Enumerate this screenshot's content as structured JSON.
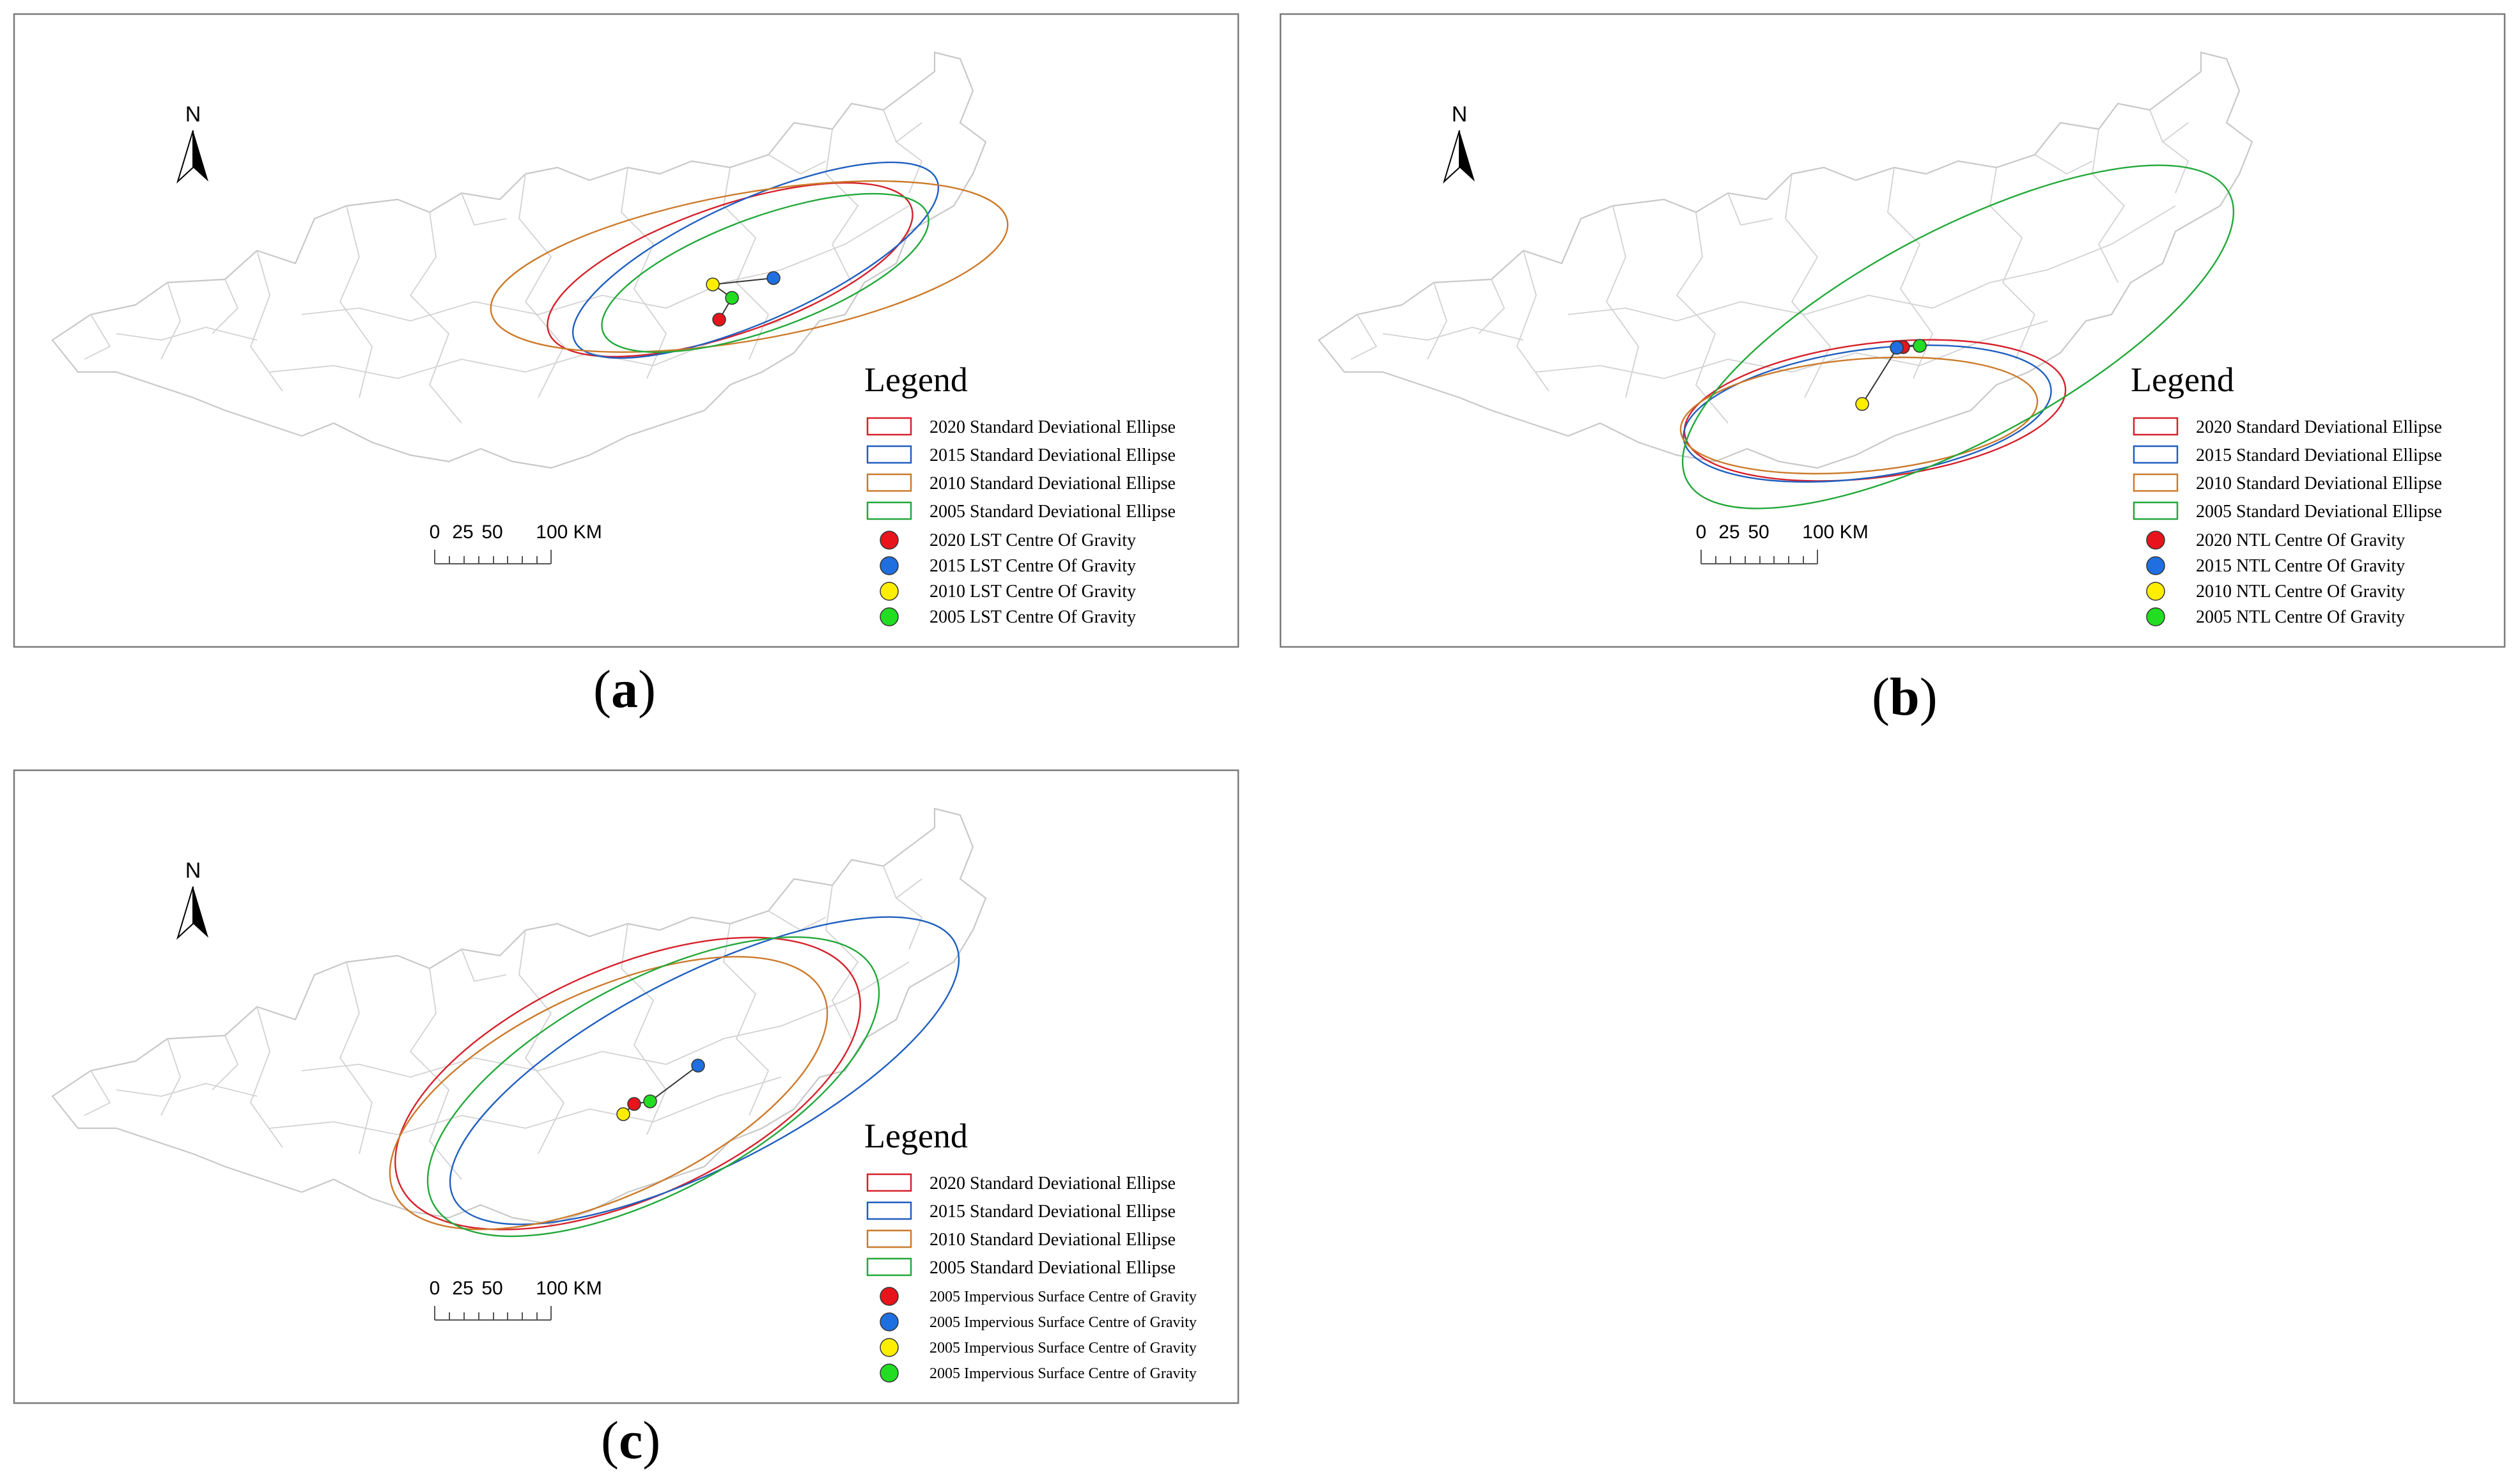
{
  "panels": [
    {
      "id": "a",
      "caption_letter": "a",
      "north_label": "N",
      "scale": {
        "ticks": [
          "0",
          "25",
          "50",
          "100 KM"
        ]
      },
      "legend": {
        "title": "Legend",
        "ellipses": [
          {
            "label": "2020 Standard Deviational Ellipse",
            "color": "#d6202a"
          },
          {
            "label": "2015 Standard Deviational Ellipse",
            "color": "#1f5fbf"
          },
          {
            "label": "2010 Standard Deviational Ellipse",
            "color": "#cc7a2a"
          },
          {
            "label": "2005 Standard Deviational Ellipse",
            "color": "#22a83a"
          }
        ],
        "centres": [
          {
            "label": "2020 LST Centre Of Gravity",
            "color": "#e8141c"
          },
          {
            "label": "2015 LST Centre Of Gravity",
            "color": "#1f6fe0"
          },
          {
            "label": "2010 LST Centre Of Gravity",
            "color": "#ffee00"
          },
          {
            "label": "2005 LST Centre Of Gravity",
            "color": "#22dd22"
          }
        ]
      }
    },
    {
      "id": "b",
      "caption_letter": "b",
      "north_label": "N",
      "scale": {
        "ticks": [
          "0",
          "25",
          "50",
          "100 KM"
        ]
      },
      "legend": {
        "title": "Legend",
        "ellipses": [
          {
            "label": "2020 Standard Deviational Ellipse",
            "color": "#d6202a"
          },
          {
            "label": "2015 Standard Deviational Ellipse",
            "color": "#1f5fbf"
          },
          {
            "label": "2010 Standard Deviational Ellipse",
            "color": "#cc7a2a"
          },
          {
            "label": "2005 Standard Deviational Ellipse",
            "color": "#22a83a"
          }
        ],
        "centres": [
          {
            "label": "2020 NTL Centre Of Gravity",
            "color": "#e8141c"
          },
          {
            "label": "2015 NTL Centre Of Gravity",
            "color": "#1f6fe0"
          },
          {
            "label": "2010 NTL Centre Of Gravity",
            "color": "#ffee00"
          },
          {
            "label": "2005 NTL Centre Of Gravity",
            "color": "#22dd22"
          }
        ]
      }
    },
    {
      "id": "c",
      "caption_letter": "c",
      "north_label": "N",
      "scale": {
        "ticks": [
          "0",
          "25",
          "50",
          "100 KM"
        ]
      },
      "legend": {
        "title": "Legend",
        "ellipses": [
          {
            "label": "2020 Standard Deviational Ellipse",
            "color": "#d6202a"
          },
          {
            "label": "2015 Standard Deviational Ellipse",
            "color": "#1f5fbf"
          },
          {
            "label": "2010 Standard Deviational Ellipse",
            "color": "#cc7a2a"
          },
          {
            "label": "2005 Standard Deviational Ellipse",
            "color": "#22a83a"
          }
        ],
        "centres": [
          {
            "label": "2005 Impervious Surface Centre of Gravity",
            "color": "#e8141c"
          },
          {
            "label": "2005 Impervious Surface Centre of Gravity",
            "color": "#1f6fe0"
          },
          {
            "label": "2005 Impervious Surface Centre of Gravity",
            "color": "#ffee00"
          },
          {
            "label": "2005 Impervious Surface Centre of Gravity",
            "color": "#22dd22"
          }
        ]
      }
    }
  ]
}
